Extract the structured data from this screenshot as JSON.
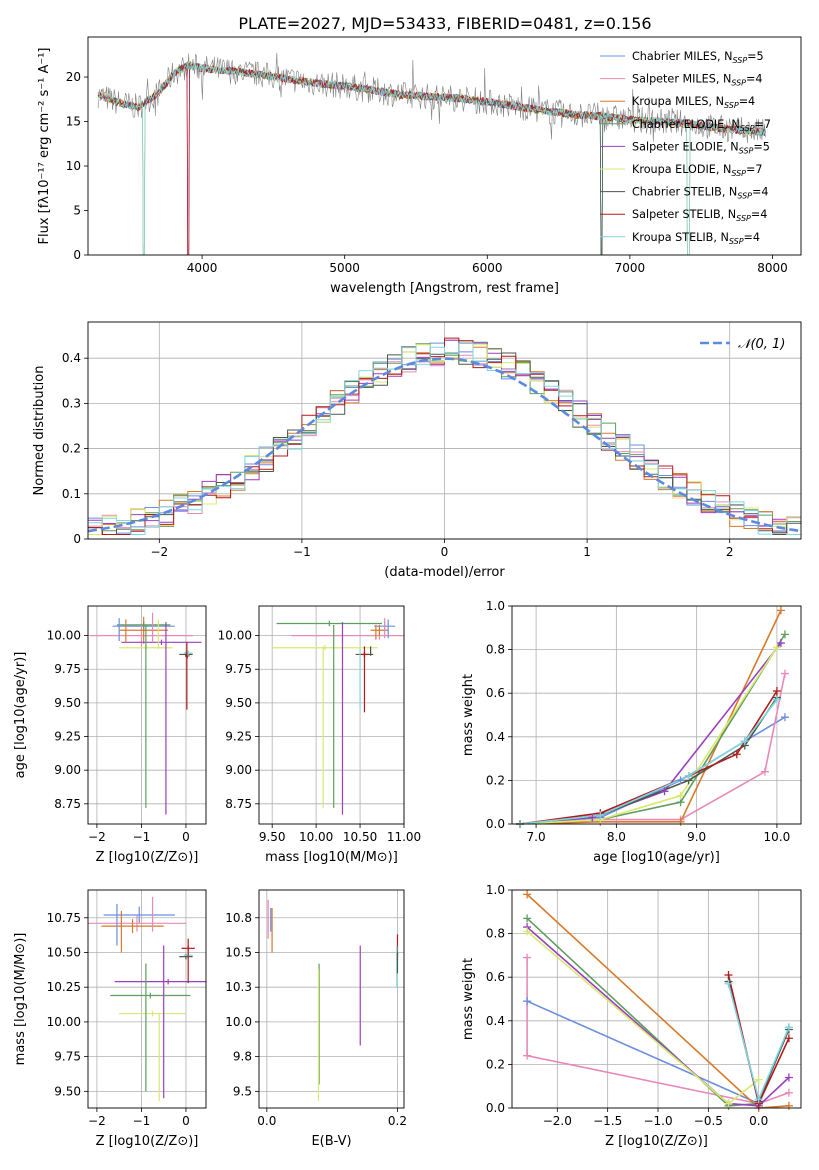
{
  "title": "PLATE=2027, MJD=53433, FIBERID=0481, z=0.156",
  "colors": {
    "chabrier_miles": "#6a8fe0",
    "salpeter_miles": "#e889b8",
    "kroupa_miles": "#d87a2a",
    "chabrier_elodie": "#5e9e5e",
    "salpeter_elodie": "#9a3fbf",
    "kroupa_elodie": "#d8e870",
    "chabrier_stelib": "#4a5a4a",
    "salpeter_stelib": "#b01c1c",
    "kroupa_stelib": "#7fd6e0",
    "gray_spectrum": "#808080",
    "normal_curve": "#5b8ae0",
    "grid": "#b0b0b0"
  },
  "legend_spectrum": [
    {
      "label": "Chabrier MILES, N",
      "sub": "SSP",
      "tail": "=5",
      "color": "chabrier_miles"
    },
    {
      "label": "Salpeter MILES, N",
      "sub": "SSP",
      "tail": "=4",
      "color": "salpeter_miles"
    },
    {
      "label": "Kroupa MILES, N",
      "sub": "SSP",
      "tail": "=4",
      "color": "kroupa_miles"
    },
    {
      "label": "Chabrier ELODIE, N",
      "sub": "SSP",
      "tail": "=7",
      "color": "chabrier_elodie"
    },
    {
      "label": "Salpeter ELODIE, N",
      "sub": "SSP",
      "tail": "=5",
      "color": "salpeter_elodie"
    },
    {
      "label": "Kroupa ELODIE, N",
      "sub": "SSP",
      "tail": "=7",
      "color": "kroupa_elodie"
    },
    {
      "label": "Chabrier STELIB, N",
      "sub": "SSP",
      "tail": "=4",
      "color": "chabrier_stelib"
    },
    {
      "label": "Salpeter STELIB, N",
      "sub": "SSP",
      "tail": "=4",
      "color": "salpeter_stelib"
    },
    {
      "label": "Kroupa STELIB, N",
      "sub": "SSP",
      "tail": "=4",
      "color": "kroupa_stelib"
    }
  ],
  "chart_data": [
    {
      "id": "spectrum",
      "type": "line",
      "xlabel": "wavelength [Angstrom, rest frame]",
      "ylabel": "Flux [fλ10⁻¹⁷ erg cm⁻² s⁻¹ A⁻¹]",
      "xlim": [
        3200,
        8200
      ],
      "ylim": [
        0,
        24.5
      ],
      "xticks": [
        4000,
        5000,
        6000,
        7000,
        8000
      ],
      "yticks": [
        0,
        5,
        10,
        15,
        20
      ],
      "grid": false,
      "legend": "top-right",
      "continuum": {
        "x": [
          3270,
          3400,
          3550,
          3700,
          3800,
          3900,
          4000,
          4200,
          4400,
          4600,
          4800,
          5000,
          5200,
          5400,
          5600,
          5800,
          6000,
          6200,
          6400,
          6600,
          6800,
          7000,
          7200,
          7400,
          7600,
          7800,
          7950
        ],
        "y": [
          18.0,
          17.2,
          16.6,
          18.3,
          20.4,
          21.3,
          21.0,
          20.7,
          20.3,
          19.8,
          19.3,
          19.0,
          18.5,
          18.0,
          17.8,
          17.6,
          17.2,
          16.7,
          16.2,
          15.8,
          15.6,
          15.2,
          15.0,
          14.8,
          14.3,
          14.0,
          13.8
        ]
      },
      "absorption_dips": [
        3590,
        3905,
        6800,
        7410
      ]
    },
    {
      "id": "residuals",
      "type": "step",
      "xlabel": "(data-model)/error",
      "ylabel": "Normed distribution",
      "xlim": [
        -2.5,
        2.5
      ],
      "ylim": [
        0,
        0.48
      ],
      "xticks": [
        -2,
        -1,
        0,
        1,
        2
      ],
      "yticks": [
        0.0,
        0.1,
        0.2,
        0.3,
        0.4
      ],
      "grid": true,
      "legend": "top-right",
      "legend_label": "𝒩(0, 1)",
      "bin_width": 0.1
    },
    {
      "id": "age_vs_Z",
      "type": "errorbar",
      "xlabel": "Z [log10(Z/Z⊙)]",
      "ylabel": "age  [log10(age/yr)]",
      "xlim": [
        -2.2,
        0.45
      ],
      "ylim": [
        8.6,
        10.22
      ],
      "xticks": [
        -2,
        -1,
        0
      ],
      "yticks": [
        8.75,
        9.0,
        9.25,
        9.5,
        9.75,
        10.0
      ],
      "grid": true,
      "points": [
        {
          "c": "chabrier_miles",
          "x": -0.95,
          "xe": 0.7,
          "y": 10.07,
          "ye": 0.04
        },
        {
          "c": "salpeter_miles",
          "x": -1.0,
          "xe": 1.15,
          "y": 10.0,
          "ye": 0.08
        },
        {
          "c": "kroupa_miles",
          "x": -0.95,
          "xe": 0.55,
          "y": 10.04,
          "ye": 0.1
        },
        {
          "c": "chabrier_elodie",
          "x": -0.95,
          "xe": 0.6,
          "y": 10.08,
          "ye": 0.02
        },
        {
          "c": "salpeter_elodie",
          "x": -0.55,
          "xe": 0.9,
          "y": 9.95,
          "ye": 0.02
        },
        {
          "c": "kroupa_elodie",
          "x": -0.9,
          "xe": 0.6,
          "y": 9.91,
          "ye": 0.02
        },
        {
          "c": "chabrier_stelib",
          "x": 0.0,
          "xe": 0.15,
          "y": 9.86,
          "ye": 0.02
        },
        {
          "c": "salpeter_stelib",
          "x": 0.03,
          "xe": 0.05,
          "y": 9.85,
          "ye": 0.02
        },
        {
          "c": "kroupa_stelib",
          "x": 0.05,
          "xe": 0.1,
          "y": 9.87,
          "ye": 0.02
        }
      ],
      "vlines": [
        {
          "c": "chabrier_elodie",
          "x": -0.9,
          "y0": 8.72,
          "y1": 10.08
        },
        {
          "c": "salpeter_elodie",
          "x": -0.45,
          "y0": 8.67,
          "y1": 10.1
        },
        {
          "c": "kroupa_elodie",
          "x": -0.62,
          "y0": 9.9,
          "y1": 10.12
        },
        {
          "c": "salpeter_stelib",
          "x": 0.02,
          "y0": 9.45,
          "y1": 9.95
        },
        {
          "c": "chabrier_miles",
          "x": -1.5,
          "y0": 9.96,
          "y1": 10.13
        },
        {
          "c": "salpeter_miles",
          "x": -0.75,
          "y0": 9.95,
          "y1": 10.17
        },
        {
          "c": "kroupa_miles",
          "x": -1.35,
          "y0": 9.95,
          "y1": 10.12
        }
      ]
    },
    {
      "id": "age_vs_mass",
      "type": "errorbar",
      "xlabel": "mass [log10(M/M⊙)]",
      "ylabel": "",
      "xlim": [
        9.35,
        11.0
      ],
      "ylim": [
        8.6,
        10.22
      ],
      "xticks": [
        9.5,
        10.0,
        10.5,
        11.0
      ],
      "yticks": [
        8.75,
        9.0,
        9.25,
        9.5,
        9.75,
        10.0
      ],
      "grid": true,
      "points": [
        {
          "c": "chabrier_miles",
          "x": 10.78,
          "xe": 0.12,
          "y": 10.07,
          "ye": 0.03
        },
        {
          "c": "salpeter_miles",
          "x": 10.72,
          "xe": 1.0,
          "y": 10.0,
          "ye": 0.03
        },
        {
          "c": "kroupa_miles",
          "x": 10.72,
          "xe": 0.1,
          "y": 10.04,
          "ye": 0.04
        },
        {
          "c": "chabrier_elodie",
          "x": 10.15,
          "xe": 0.6,
          "y": 10.09,
          "ye": 0.02
        },
        {
          "c": "kroupa_elodie",
          "x": 10.1,
          "xe": 0.6,
          "y": 9.91,
          "ye": 0.02
        },
        {
          "c": "chabrier_stelib",
          "x": 10.55,
          "xe": 0.1,
          "y": 9.86,
          "ye": 0.02
        },
        {
          "c": "salpeter_stelib",
          "x": 10.55,
          "xe": 0.05,
          "y": 9.86,
          "ye": 0.02
        }
      ],
      "vlines": [
        {
          "c": "kroupa_elodie",
          "x": 10.08,
          "y0": 8.72,
          "y1": 9.92
        },
        {
          "c": "chabrier_elodie",
          "x": 10.2,
          "y0": 8.72,
          "y1": 10.08
        },
        {
          "c": "salpeter_elodie",
          "x": 10.3,
          "y0": 8.67,
          "y1": 10.1
        },
        {
          "c": "salpeter_stelib",
          "x": 10.55,
          "y0": 9.43,
          "y1": 9.92
        },
        {
          "c": "kroupa_stelib",
          "x": 10.5,
          "y0": 9.45,
          "y1": 9.9
        },
        {
          "c": "chabrier_stelib",
          "x": 10.62,
          "y0": 9.85,
          "y1": 9.92
        },
        {
          "c": "salpeter_miles",
          "x": 10.78,
          "y0": 9.98,
          "y1": 10.13
        },
        {
          "c": "chabrier_miles",
          "x": 10.82,
          "y0": 9.98,
          "y1": 10.12
        },
        {
          "c": "kroupa_miles",
          "x": 10.68,
          "y0": 9.97,
          "y1": 10.08
        }
      ]
    },
    {
      "id": "mass_weight_vs_age",
      "type": "line",
      "xlabel": "age  [log10(age/yr)]",
      "ylabel": "mass weight",
      "xlim": [
        6.7,
        10.3
      ],
      "ylim": [
        0,
        1.0
      ],
      "xticks": [
        7,
        8,
        9,
        10
      ],
      "yticks": [
        0.0,
        0.2,
        0.4,
        0.6,
        0.8,
        1.0
      ],
      "grid": true,
      "series": [
        {
          "c": "chabrier_miles",
          "x": [
            6.8,
            7.8,
            8.8,
            9.6,
            10.1
          ],
          "y": [
            0.0,
            0.03,
            0.2,
            0.38,
            0.49
          ]
        },
        {
          "c": "salpeter_miles",
          "x": [
            6.8,
            7.8,
            8.8,
            9.85,
            10.1
          ],
          "y": [
            0.0,
            0.02,
            0.02,
            0.24,
            0.69
          ]
        },
        {
          "c": "kroupa_miles",
          "x": [
            6.8,
            7.8,
            8.8,
            10.05
          ],
          "y": [
            0.0,
            0.01,
            0.01,
            0.98
          ]
        },
        {
          "c": "chabrier_elodie",
          "x": [
            6.8,
            7.8,
            8.8,
            10.1
          ],
          "y": [
            0.0,
            0.02,
            0.1,
            0.87
          ]
        },
        {
          "c": "salpeter_elodie",
          "x": [
            6.8,
            7.7,
            8.6,
            10.05
          ],
          "y": [
            0.0,
            0.03,
            0.15,
            0.83
          ]
        },
        {
          "c": "kroupa_elodie",
          "x": [
            6.8,
            7.8,
            8.8,
            10.0
          ],
          "y": [
            0.0,
            0.02,
            0.13,
            0.81
          ]
        },
        {
          "c": "chabrier_stelib",
          "x": [
            6.8,
            7.8,
            8.9,
            9.6,
            10.0
          ],
          "y": [
            0.0,
            0.04,
            0.2,
            0.36,
            0.58
          ]
        },
        {
          "c": "salpeter_stelib",
          "x": [
            6.8,
            7.8,
            8.9,
            9.5,
            10.0
          ],
          "y": [
            0.0,
            0.05,
            0.22,
            0.32,
            0.61
          ]
        },
        {
          "c": "kroupa_stelib",
          "x": [
            6.8,
            7.8,
            8.9,
            9.6,
            10.0
          ],
          "y": [
            0.0,
            0.04,
            0.22,
            0.38,
            0.57
          ]
        }
      ]
    },
    {
      "id": "mass_vs_Z",
      "type": "errorbar",
      "xlabel": "Z [log10(Z/Z⊙)]",
      "ylabel": "mass [log10(M/M⊙)]",
      "xlim": [
        -2.2,
        0.45
      ],
      "ylim": [
        9.38,
        10.95
      ],
      "xticks": [
        -2,
        -1,
        0
      ],
      "yticks": [
        9.5,
        9.75,
        10.0,
        10.25,
        10.5,
        10.75
      ],
      "grid": true,
      "points": [
        {
          "c": "chabrier_miles",
          "x": -1.05,
          "xe": 0.8,
          "y": 10.77,
          "ye": 0.06
        },
        {
          "c": "salpeter_miles",
          "x": -1.1,
          "xe": 1.1,
          "y": 10.71,
          "ye": 0.06
        },
        {
          "c": "kroupa_miles",
          "x": -1.2,
          "xe": 0.7,
          "y": 10.69,
          "ye": 0.05
        },
        {
          "c": "salpeter_elodie",
          "x": -0.4,
          "xe": 1.2,
          "y": 10.29,
          "ye": 0.02
        },
        {
          "c": "chabrier_elodie",
          "x": -0.8,
          "xe": 0.9,
          "y": 10.19,
          "ye": 0.02
        },
        {
          "c": "kroupa_elodie",
          "x": -0.75,
          "xe": 0.75,
          "y": 10.06,
          "ye": 0.02
        },
        {
          "c": "chabrier_stelib",
          "x": 0.0,
          "xe": 0.15,
          "y": 10.47,
          "ye": 0.02
        },
        {
          "c": "salpeter_stelib",
          "x": 0.05,
          "xe": 0.15,
          "y": 10.53,
          "ye": 0.02
        },
        {
          "c": "kroupa_stelib",
          "x": 0.05,
          "xe": 0.1,
          "y": 10.48,
          "ye": 0.02
        }
      ],
      "vlines": [
        {
          "c": "chabrier_elodie",
          "x": -0.9,
          "y0": 9.5,
          "y1": 10.42
        },
        {
          "c": "salpeter_elodie",
          "x": -0.5,
          "y0": 9.45,
          "y1": 10.55
        },
        {
          "c": "kroupa_elodie",
          "x": -0.6,
          "y0": 9.43,
          "y1": 10.06
        },
        {
          "c": "salpeter_stelib",
          "x": 0.05,
          "y0": 10.28,
          "y1": 10.6
        },
        {
          "c": "chabrier_miles",
          "x": -1.55,
          "y0": 10.55,
          "y1": 10.85
        },
        {
          "c": "salpeter_miles",
          "x": -0.75,
          "y0": 10.65,
          "y1": 10.9
        },
        {
          "c": "kroupa_miles",
          "x": -1.45,
          "y0": 10.5,
          "y1": 10.8
        }
      ]
    },
    {
      "id": "mass_vs_EBV",
      "type": "errorbar",
      "xlabel": "E(B-V)",
      "ylabel": "",
      "xlim": [
        -0.012,
        0.21
      ],
      "ylim": [
        9.38,
        10.95
      ],
      "xticks": [
        0.0,
        0.2
      ],
      "yticks": [
        9.5,
        9.75,
        10.0,
        10.25,
        10.5,
        10.75
      ],
      "grid": true,
      "vlines": [
        {
          "c": "salpeter_miles",
          "x": 0.002,
          "y0": 10.6,
          "y1": 10.88
        },
        {
          "c": "kroupa_miles",
          "x": 0.008,
          "y0": 10.5,
          "y1": 10.82
        },
        {
          "c": "chabrier_miles",
          "x": 0.006,
          "y0": 10.65,
          "y1": 10.82
        },
        {
          "c": "chabrier_elodie",
          "x": 0.08,
          "y0": 9.55,
          "y1": 10.42
        },
        {
          "c": "kroupa_elodie",
          "x": 0.079,
          "y0": 9.43,
          "y1": 10.38
        },
        {
          "c": "salpeter_elodie",
          "x": 0.143,
          "y0": 9.83,
          "y1": 10.55
        },
        {
          "c": "salpeter_stelib",
          "x": 0.2,
          "y0": 10.45,
          "y1": 10.63
        },
        {
          "c": "kroupa_stelib",
          "x": 0.199,
          "y0": 10.25,
          "y1": 10.55
        },
        {
          "c": "chabrier_stelib",
          "x": 0.2,
          "y0": 10.35,
          "y1": 10.5
        }
      ]
    },
    {
      "id": "mass_weight_vs_Z",
      "type": "line",
      "xlabel": "Z [log10(Z/Z⊙)]",
      "ylabel": "mass weight",
      "xlim": [
        -2.45,
        0.42
      ],
      "ylim": [
        0,
        1.0
      ],
      "xticks": [
        -2.0,
        -1.5,
        -1.0,
        -0.5,
        0.0
      ],
      "yticks": [
        0.0,
        0.2,
        0.4,
        0.6,
        0.8,
        1.0
      ],
      "grid": true,
      "series": [
        {
          "c": "chabrier_miles",
          "x": [
            -2.3,
            0.0,
            0.3
          ],
          "y": [
            0.49,
            0.02,
            0.37
          ]
        },
        {
          "c": "salpeter_miles",
          "x": [
            -2.3,
            -2.3,
            0.0,
            0.3
          ],
          "y": [
            0.69,
            0.24,
            0.02,
            0.07
          ]
        },
        {
          "c": "kroupa_miles",
          "x": [
            -2.3,
            0.0,
            0.3
          ],
          "y": [
            0.98,
            0.0,
            0.01
          ]
        },
        {
          "c": "chabrier_elodie",
          "x": [
            -2.3,
            -0.3,
            0.0
          ],
          "y": [
            0.87,
            0.01,
            0.02
          ]
        },
        {
          "c": "salpeter_elodie",
          "x": [
            -2.3,
            -0.3,
            0.0,
            0.3
          ],
          "y": [
            0.83,
            0.02,
            0.01,
            0.14
          ]
        },
        {
          "c": "kroupa_elodie",
          "x": [
            -2.3,
            -0.3,
            0.0
          ],
          "y": [
            0.81,
            0.02,
            0.13
          ]
        },
        {
          "c": "chabrier_stelib",
          "x": [
            -0.3,
            0.0,
            0.3
          ],
          "y": [
            0.58,
            0.03,
            0.36
          ]
        },
        {
          "c": "salpeter_stelib",
          "x": [
            -0.3,
            0.0,
            0.3
          ],
          "y": [
            0.61,
            0.02,
            0.32
          ]
        },
        {
          "c": "kroupa_stelib",
          "x": [
            -0.3,
            0.0,
            0.3
          ],
          "y": [
            0.57,
            0.04,
            0.37
          ]
        }
      ]
    }
  ]
}
